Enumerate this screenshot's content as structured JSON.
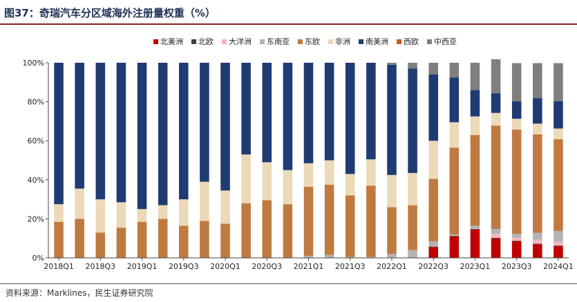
{
  "title": "图37：奇瑞汽车分区域海外注册量权重（%）",
  "source": "资料来源：Marklines，民生证券研究院",
  "colors": {
    "北美洲": "#c00000",
    "北欧": "#404040",
    "大洋洲": "#f4b6c2",
    "东南亚": "#b3b3b3",
    "东欧": "#c07a40",
    "非洲": "#ecd9b8",
    "南美洲": "#1f3b73",
    "西欧": "#c55a11",
    "中西亚": "#7f7f7f"
  },
  "chart_data": {
    "type": "bar",
    "stacked": true,
    "title": "奇瑞汽车分区域海外注册量权重（%）",
    "ylim": [
      0,
      100
    ],
    "yticks": [
      "0%",
      "20%",
      "40%",
      "60%",
      "80%",
      "100%"
    ],
    "xtick_labels": [
      "2018Q1",
      "2018Q3",
      "2019Q1",
      "2019Q3",
      "2020Q1",
      "2020Q3",
      "2021Q1",
      "2021Q3",
      "2022Q1",
      "2022Q3",
      "2023Q1",
      "2023Q3",
      "2024Q1"
    ],
    "legend_position": "top-center",
    "categories": [
      "2018Q1",
      "2018Q2",
      "2018Q3",
      "2018Q4",
      "2019Q1",
      "2019Q2",
      "2019Q3",
      "2019Q4",
      "2020Q1",
      "2020Q2",
      "2020Q3",
      "2020Q4",
      "2021Q1",
      "2021Q2",
      "2021Q3",
      "2021Q4",
      "2022Q1",
      "2022Q2",
      "2022Q3",
      "2022Q4",
      "2023Q1",
      "2023Q2",
      "2023Q3",
      "2023Q4",
      "2024Q1"
    ],
    "series": [
      {
        "name": "北美洲",
        "values": [
          0,
          0,
          0,
          0,
          0,
          0,
          0,
          0,
          0,
          0,
          0,
          0,
          0,
          0,
          0,
          0,
          0,
          0,
          5.5,
          11,
          14.5,
          10,
          8.5,
          7,
          6
        ]
      },
      {
        "name": "北欧",
        "values": [
          0,
          0,
          0,
          0,
          0,
          0,
          0,
          0,
          0,
          0,
          0,
          0,
          0,
          0,
          0,
          0,
          0,
          0,
          0.3,
          0.3,
          0.3,
          0.3,
          0.3,
          0.3,
          0.3
        ]
      },
      {
        "name": "大洋洲",
        "values": [
          0,
          0,
          0,
          0,
          0,
          0,
          0,
          0,
          0,
          0,
          0,
          0,
          0,
          0,
          0,
          0,
          0,
          0,
          0.2,
          0.2,
          0.2,
          2,
          1.5,
          2,
          2
        ]
      },
      {
        "name": "东南亚",
        "values": [
          0,
          0,
          0,
          0,
          0,
          0,
          0,
          0,
          0,
          0,
          0,
          0,
          1,
          1.5,
          0.5,
          0.5,
          2,
          4,
          2.5,
          0.5,
          1.5,
          2.5,
          2,
          3.5,
          5.5
        ]
      },
      {
        "name": "东欧",
        "values": [
          18.5,
          20,
          13,
          15.5,
          18.5,
          20,
          16.5,
          19,
          17.5,
          28,
          29.5,
          27.5,
          35.5,
          36,
          31.5,
          36.5,
          24,
          23,
          32,
          44.5,
          46.5,
          53,
          53.5,
          50.5,
          47
        ]
      },
      {
        "name": "非洲",
        "values": [
          9,
          15.5,
          17,
          13,
          6.5,
          7,
          13.5,
          20,
          17,
          25,
          19.5,
          17.5,
          12,
          12.5,
          11,
          13.5,
          16.5,
          16.5,
          19.5,
          13,
          9.5,
          6.5,
          5.5,
          5.5,
          5.5
        ]
      },
      {
        "name": "南美洲",
        "values": [
          72.5,
          64.5,
          70,
          71.5,
          75,
          73,
          70,
          61,
          65.5,
          47,
          51,
          55,
          51.5,
          50,
          57,
          49.5,
          56.5,
          53.5,
          34,
          23,
          13.5,
          10,
          9,
          13,
          14
        ]
      },
      {
        "name": "西欧",
        "values": [
          0,
          0,
          0,
          0,
          0,
          0,
          0,
          0,
          0,
          0,
          0,
          0,
          0,
          0,
          0,
          0,
          0,
          0,
          0,
          0,
          0,
          0,
          0,
          0,
          0
        ]
      },
      {
        "name": "中西亚",
        "values": [
          0,
          0,
          0,
          0,
          0,
          0,
          0,
          0,
          0,
          0,
          0,
          0,
          0,
          0,
          0,
          0,
          1,
          3,
          6,
          7.5,
          14,
          17.5,
          19.5,
          18,
          19.5
        ]
      }
    ]
  }
}
